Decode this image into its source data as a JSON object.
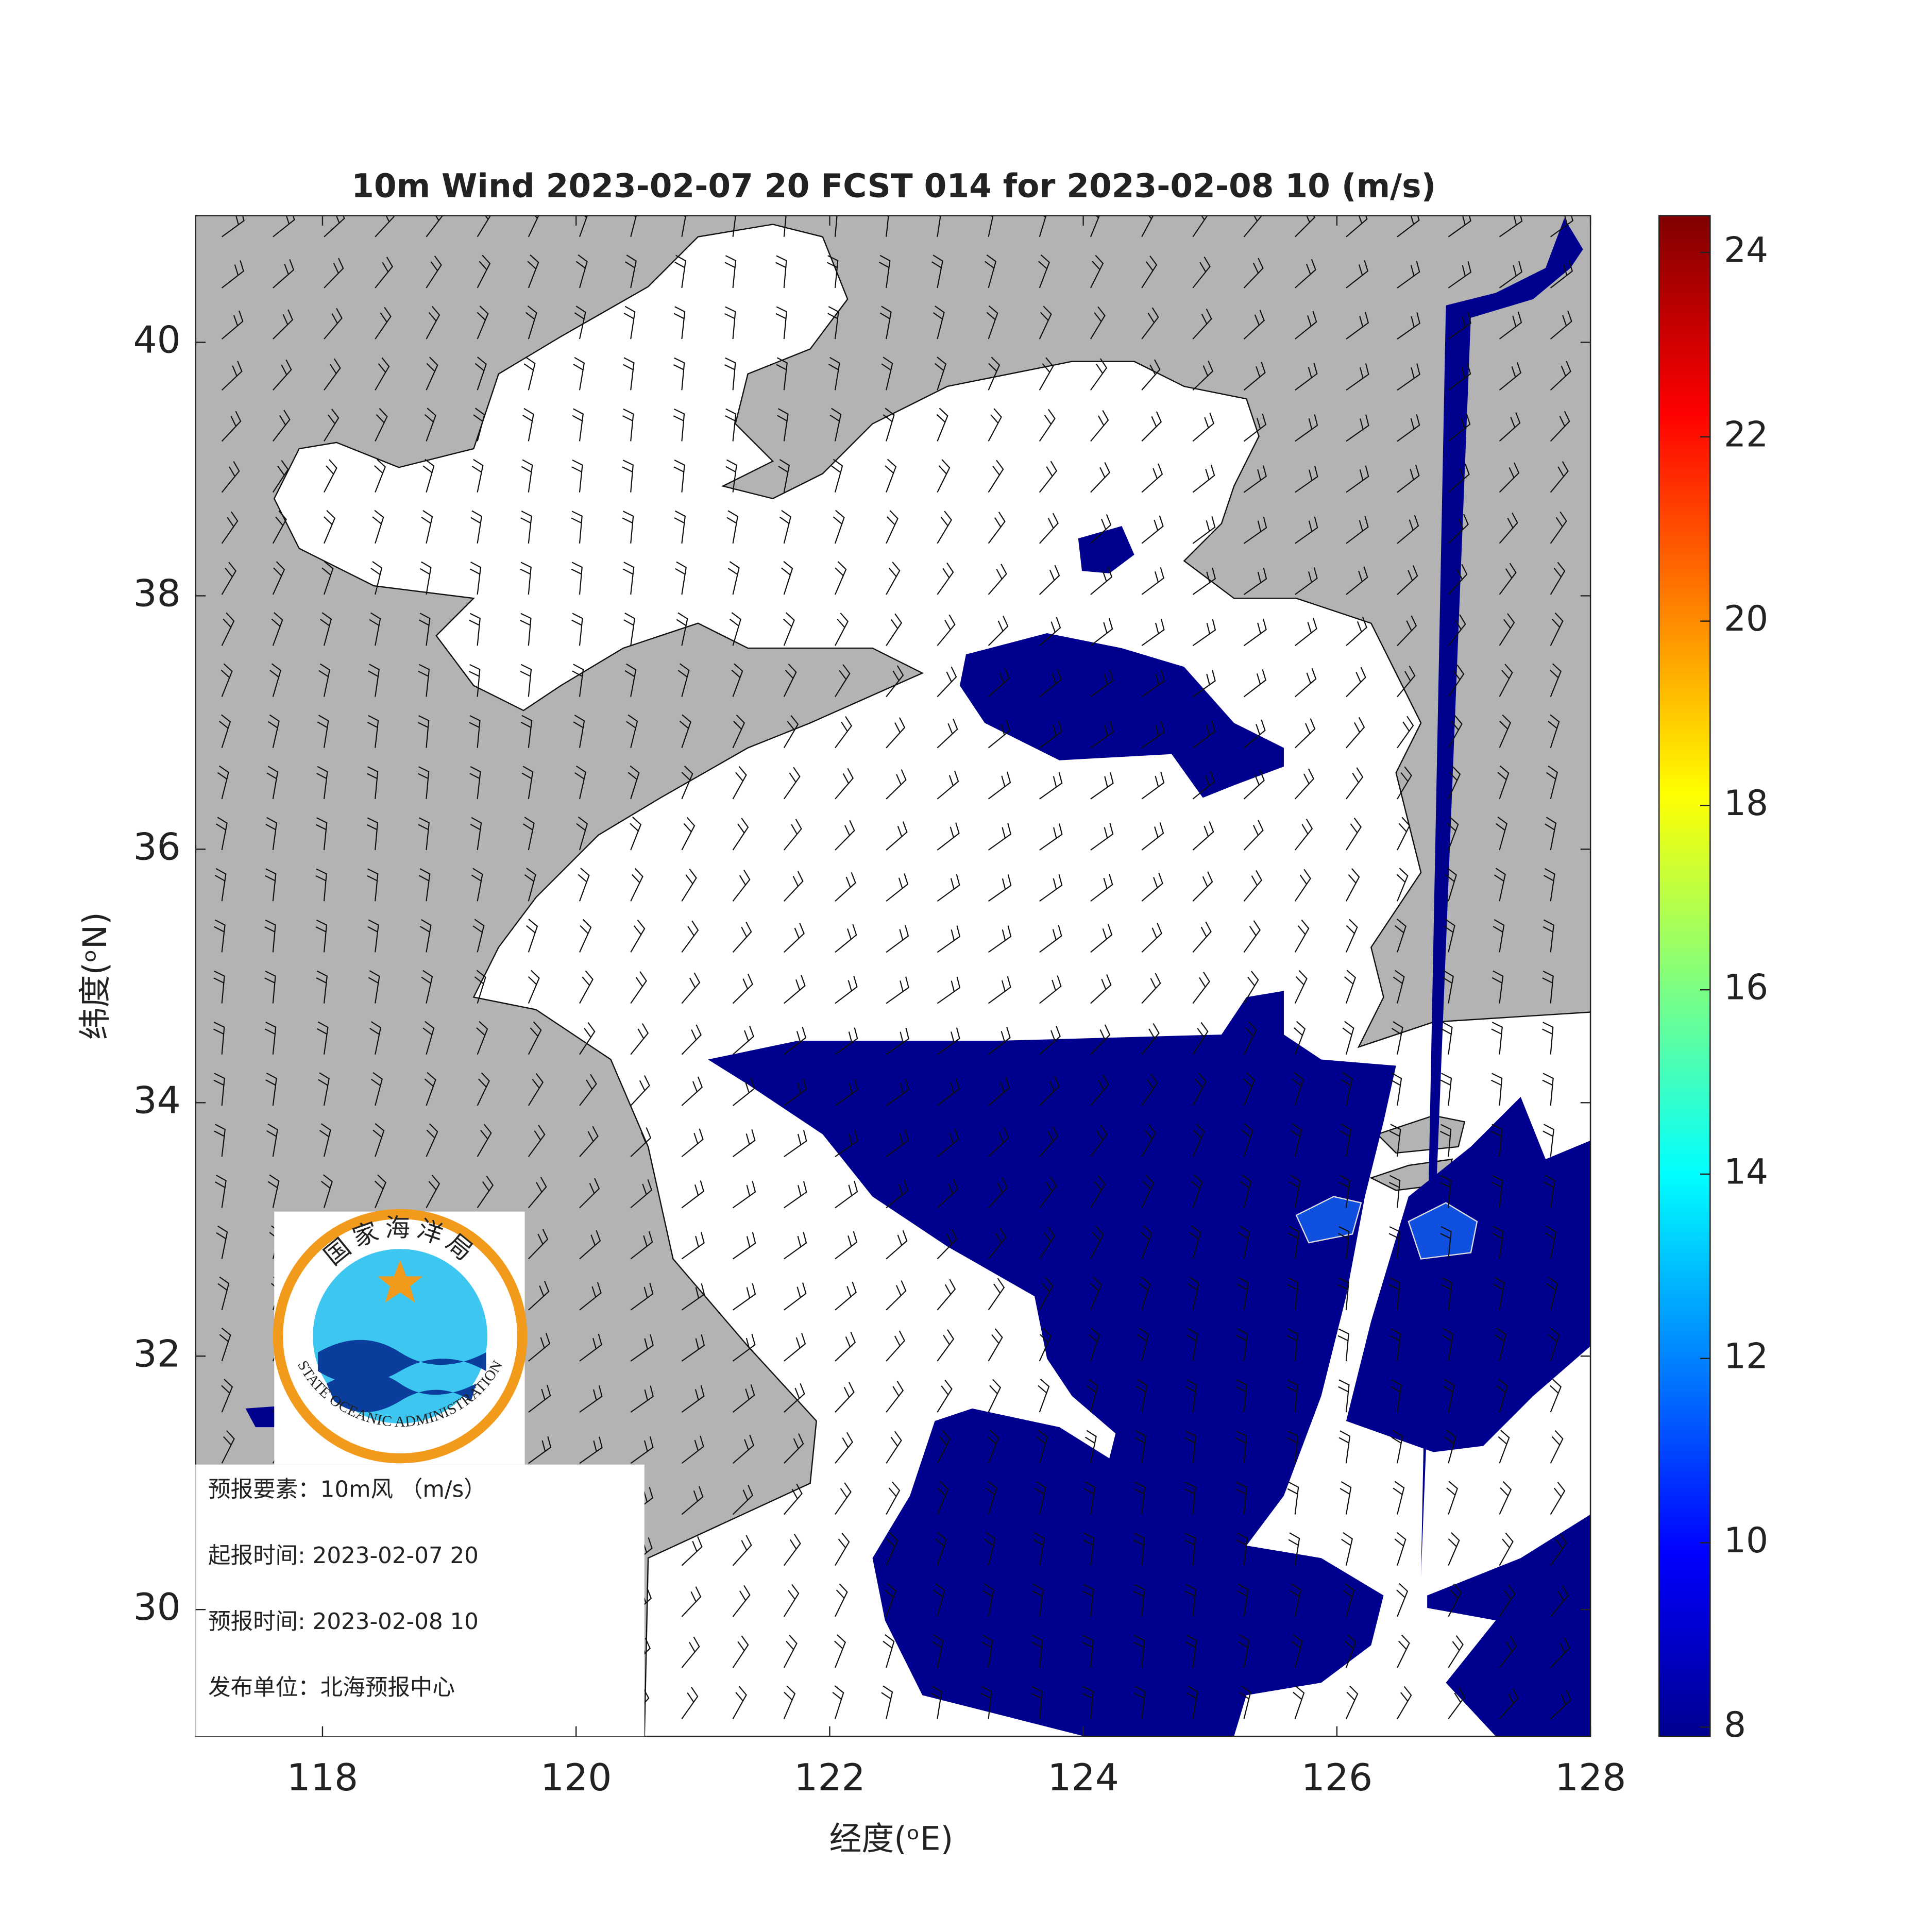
{
  "chart_data": {
    "type": "map",
    "title": "10m Wind 2023-02-07 20 FCST 014 for 2023-02-08 10 (m/s)",
    "xlabel": "经度(ᵒE)",
    "ylabel": "纬度(ᵒN)",
    "xlim": [
      117,
      128
    ],
    "ylim": [
      29,
      41
    ],
    "xticks": [
      118,
      120,
      122,
      124,
      126,
      128
    ],
    "yticks": [
      30,
      32,
      34,
      36,
      38,
      40
    ],
    "colorbar": {
      "lim": [
        7.9,
        24.4
      ],
      "ticks": [
        8,
        10,
        12,
        14,
        16,
        18,
        20,
        22,
        24
      ]
    },
    "info": [
      "预报要素：10m风 （m/s）",
      "起报时间: 2023-02-07 20",
      "预报时间: 2023-02-08 10",
      "发布单位：北海预报中心"
    ],
    "logo": {
      "name_cn": "国家海洋局",
      "name_en": "STATE OCEANIC ADMINISTRATION"
    }
  }
}
